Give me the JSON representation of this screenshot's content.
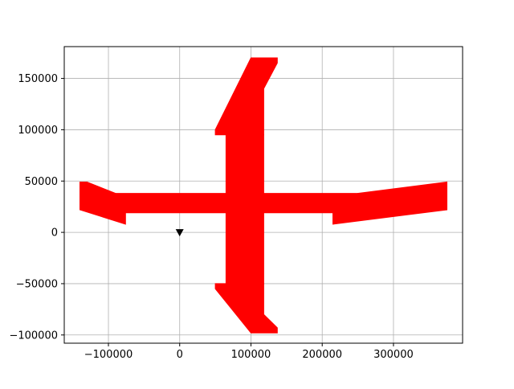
{
  "chart_data": {
    "type": "area",
    "title": "",
    "xlabel": "",
    "ylabel": "",
    "xlim": [
      -162000,
      397000
    ],
    "ylim": [
      -108000,
      181000
    ],
    "grid": true,
    "xticks": [
      -100000,
      0,
      100000,
      200000,
      300000
    ],
    "xtick_labels": [
      "−100000",
      "0",
      "100000",
      "200000",
      "300000"
    ],
    "yticks": [
      -100000,
      -50000,
      0,
      50000,
      100000,
      150000
    ],
    "ytick_labels": [
      "−100000",
      "−50000",
      "0",
      "50000",
      "100000",
      "150000"
    ],
    "colors": {
      "shape": "#ff0000",
      "marker": "#000000",
      "grid": "#b0b0b0",
      "axes": "#000000"
    },
    "shapes": [
      {
        "name": "vertical-body",
        "points": [
          [
            65000,
            -50000
          ],
          [
            65000,
            95000
          ],
          [
            118000,
            95000
          ],
          [
            118000,
            -50000
          ]
        ]
      },
      {
        "name": "upper-spike",
        "points": [
          [
            50000,
            95000
          ],
          [
            50000,
            100000
          ],
          [
            100000,
            170000
          ],
          [
            137000,
            170000
          ],
          [
            137000,
            165000
          ],
          [
            118000,
            140000
          ],
          [
            118000,
            95000
          ]
        ]
      },
      {
        "name": "lower-spike",
        "points": [
          [
            50000,
            -50000
          ],
          [
            50000,
            -55000
          ],
          [
            100000,
            -98000
          ],
          [
            137000,
            -98000
          ],
          [
            137000,
            -93000
          ],
          [
            118000,
            -80000
          ],
          [
            118000,
            -50000
          ]
        ]
      },
      {
        "name": "horizontal-bar",
        "points": [
          [
            -90000,
            19000
          ],
          [
            -90000,
            38000
          ],
          [
            250000,
            38000
          ],
          [
            250000,
            19000
          ]
        ]
      },
      {
        "name": "left-wing",
        "points": [
          [
            -140000,
            22000
          ],
          [
            -140000,
            49000
          ],
          [
            -130000,
            49000
          ],
          [
            -90000,
            38000
          ],
          [
            -90000,
            19000
          ],
          [
            -76000,
            19000
          ],
          [
            -76000,
            8000
          ]
        ]
      },
      {
        "name": "right-wing",
        "points": [
          [
            215000,
            8000
          ],
          [
            215000,
            19000
          ],
          [
            250000,
            19000
          ],
          [
            250000,
            38000
          ],
          [
            375000,
            49000
          ],
          [
            375000,
            22000
          ]
        ]
      }
    ],
    "markers": [
      {
        "x": 0,
        "y": 0,
        "symbol": "triangle-down"
      }
    ]
  }
}
